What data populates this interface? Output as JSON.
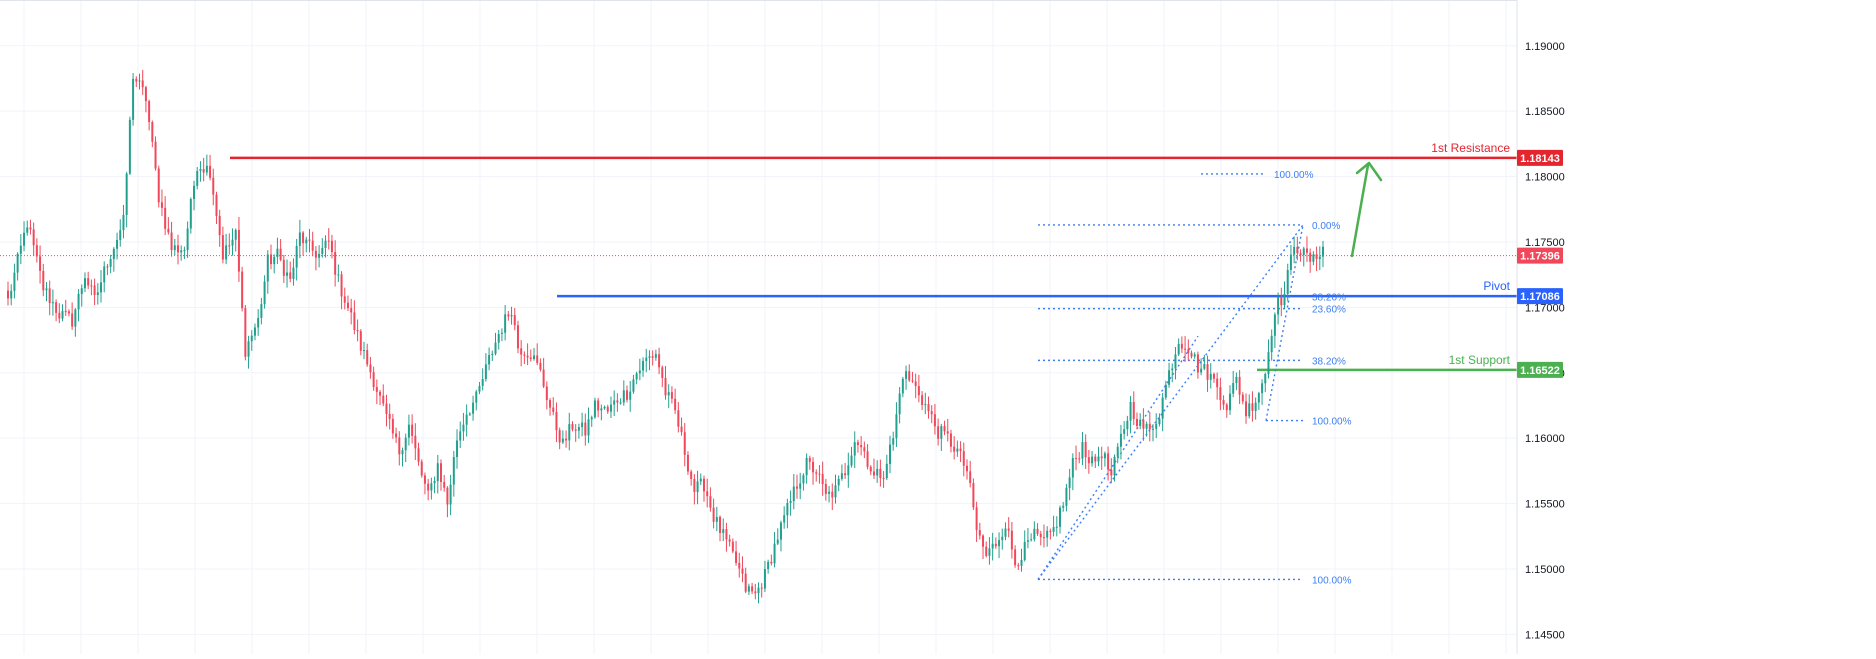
{
  "chart_data": {
    "type": "candlestick",
    "title": "",
    "xlabel": "",
    "ylabel": "",
    "ylim": [
      1.1435,
      1.1935
    ],
    "y_ticks": [
      {
        "value": 1.145,
        "label": "1.14500"
      },
      {
        "value": 1.15,
        "label": "1.15000"
      },
      {
        "value": 1.155,
        "label": "1.15500"
      },
      {
        "value": 1.16,
        "label": "1.16000"
      },
      {
        "value": 1.165,
        "label": "1.16500"
      },
      {
        "value": 1.17,
        "label": "1.17000"
      },
      {
        "value": 1.175,
        "label": "1.17500"
      },
      {
        "value": 1.18,
        "label": "1.18000"
      },
      {
        "value": 1.185,
        "label": "1.18500"
      },
      {
        "value": 1.19,
        "label": "1.19000"
      }
    ],
    "grid": true,
    "colors": {
      "up": "#22a08e",
      "down": "#f0485a",
      "resistance": "#e5252e",
      "pivot": "#2962ff",
      "support": "#4caf50",
      "fib": "#3d7ff2",
      "arrow": "#4caf50"
    },
    "price_path": [
      [
        0,
        1.1705
      ],
      [
        6,
        1.1765
      ],
      [
        11,
        1.1715
      ],
      [
        16,
        1.1695
      ],
      [
        20,
        1.169
      ],
      [
        24,
        1.1725
      ],
      [
        27,
        1.1705
      ],
      [
        31,
        1.1735
      ],
      [
        36,
        1.1765
      ],
      [
        39,
        1.1878
      ],
      [
        43,
        1.186
      ],
      [
        47,
        1.1785
      ],
      [
        51,
        1.1745
      ],
      [
        55,
        1.1745
      ],
      [
        59,
        1.181
      ],
      [
        63,
        1.1805
      ],
      [
        67,
        1.174
      ],
      [
        71,
        1.1755
      ],
      [
        74,
        1.1668
      ],
      [
        78,
        1.169
      ],
      [
        81,
        1.1735
      ],
      [
        84,
        1.174
      ],
      [
        88,
        1.172
      ],
      [
        91,
        1.1755
      ],
      [
        94,
        1.1745
      ],
      [
        97,
        1.174
      ],
      [
        100,
        1.175
      ],
      [
        103,
        1.172
      ],
      [
        106,
        1.17
      ],
      [
        110,
        1.167
      ],
      [
        114,
        1.1645
      ],
      [
        118,
        1.1615
      ],
      [
        122,
        1.159
      ],
      [
        125,
        1.161
      ],
      [
        128,
        1.158
      ],
      [
        131,
        1.1555
      ],
      [
        134,
        1.158
      ],
      [
        137,
        1.155
      ],
      [
        140,
        1.16
      ],
      [
        143,
        1.162
      ],
      [
        146,
        1.163
      ],
      [
        150,
        1.166
      ],
      [
        153,
        1.168
      ],
      [
        157,
        1.17
      ],
      [
        159,
        1.167
      ],
      [
        163,
        1.1665
      ],
      [
        166,
        1.165
      ],
      [
        170,
        1.1615
      ],
      [
        173,
        1.1595
      ],
      [
        176,
        1.161
      ],
      [
        180,
        1.1605
      ],
      [
        183,
        1.1625
      ],
      [
        187,
        1.162
      ],
      [
        190,
        1.163
      ],
      [
        193,
        1.1635
      ],
      [
        196,
        1.165
      ],
      [
        199,
        1.166
      ],
      [
        202,
        1.1665
      ],
      [
        205,
        1.1635
      ],
      [
        208,
        1.162
      ],
      [
        211,
        1.159
      ],
      [
        214,
        1.156
      ],
      [
        217,
        1.1565
      ],
      [
        220,
        1.154
      ],
      [
        224,
        1.152
      ],
      [
        227,
        1.1505
      ],
      [
        230,
        1.1485
      ],
      [
        233,
        1.148
      ],
      [
        236,
        1.1495
      ],
      [
        240,
        1.1525
      ],
      [
        243,
        1.1545
      ],
      [
        246,
        1.1565
      ],
      [
        249,
        1.158
      ],
      [
        252,
        1.1575
      ],
      [
        255,
        1.1555
      ],
      [
        258,
        1.156
      ],
      [
        261,
        1.1575
      ],
      [
        264,
        1.16
      ],
      [
        267,
        1.159
      ],
      [
        270,
        1.157
      ],
      [
        273,
        1.1575
      ],
      [
        276,
        1.16
      ],
      [
        279,
        1.165
      ],
      [
        281,
        1.1645
      ],
      [
        284,
        1.1635
      ],
      [
        287,
        1.162
      ],
      [
        290,
        1.1605
      ],
      [
        293,
        1.16
      ],
      [
        296,
        1.159
      ],
      [
        299,
        1.1575
      ],
      [
        302,
        1.153
      ],
      [
        305,
        1.151
      ],
      [
        308,
        1.152
      ],
      [
        311,
        1.1535
      ],
      [
        314,
        1.1505
      ],
      [
        317,
        1.1515
      ],
      [
        320,
        1.1525
      ],
      [
        323,
        1.152
      ],
      [
        326,
        1.153
      ],
      [
        329,
        1.155
      ],
      [
        332,
        1.158
      ],
      [
        335,
        1.1595
      ],
      [
        338,
        1.158
      ],
      [
        341,
        1.159
      ],
      [
        344,
        1.157
      ],
      [
        347,
        1.16
      ],
      [
        350,
        1.1625
      ],
      [
        353,
        1.161
      ],
      [
        356,
        1.1605
      ],
      [
        359,
        1.162
      ],
      [
        362,
        1.165
      ],
      [
        365,
        1.1675
      ],
      [
        368,
        1.167
      ],
      [
        371,
        1.1655
      ],
      [
        374,
        1.165
      ],
      [
        377,
        1.164
      ],
      [
        380,
        1.1625
      ],
      [
        383,
        1.1645
      ],
      [
        386,
        1.162
      ],
      [
        389,
        1.163
      ],
      [
        392,
        1.165
      ],
      [
        395,
        1.17
      ],
      [
        398,
        1.171
      ],
      [
        401,
        1.175
      ],
      [
        404,
        1.174
      ],
      [
        407,
        1.1735
      ],
      [
        410,
        1.1748
      ]
    ],
    "annotations": [
      {
        "label": "1st Resistance",
        "price": 1.18143,
        "badge": "1.18143"
      },
      {
        "label": "Pivot",
        "price": 1.17086,
        "badge": "1.17086"
      },
      {
        "label": "1st Support",
        "price": 1.16522,
        "badge": "1.16522"
      }
    ],
    "last_price": {
      "price": 1.17396,
      "badge": "1.17396"
    },
    "fib_large": {
      "low": 1.1492,
      "high": 1.1763,
      "label_top": "0.00%",
      "label_236": "23.60%",
      "label_382": "38.20%",
      "label_bottom": "100.00%"
    },
    "fib_small": {
      "low": 1.16135,
      "high": 1.1763,
      "label_top": "100.00%",
      "label_382": "38.20%",
      "label_bottom": "100.00%"
    },
    "fib_extra": {
      "price": 1.17085,
      "label": "38.20%"
    }
  }
}
